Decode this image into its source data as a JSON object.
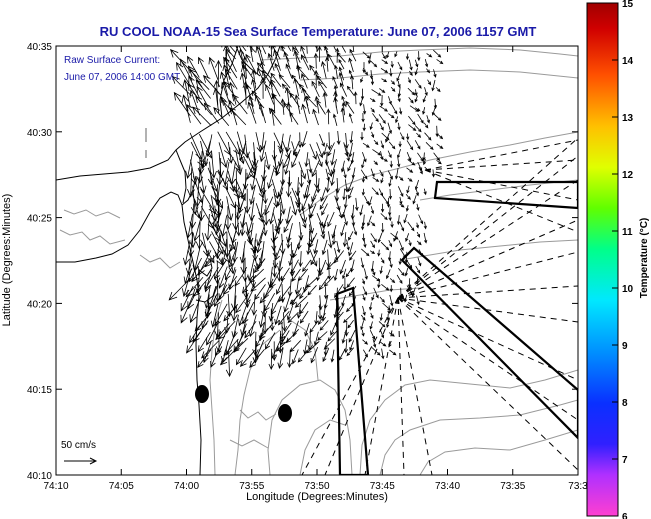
{
  "chart_data": {
    "type": "scatter",
    "title": "RU COOL  NOAA-15  Sea Surface Temperature:  June 07, 2006 1157 GMT",
    "subtitle_line1": "Raw Surface Current:",
    "subtitle_line2": "June 07, 2006 14:00 GMT",
    "xlabel": "Longitude (Degrees:Minutes)",
    "ylabel": "Latitude (Degrees:Minutes)",
    "x_ticks": [
      "74:10",
      "74:05",
      "74:00",
      "73:55",
      "73:50",
      "73:45",
      "73:40",
      "73:35",
      "73:3"
    ],
    "y_ticks": [
      "40:10",
      "40:15",
      "40:20",
      "40:25",
      "40:30",
      "40:35"
    ],
    "scale_label": "50 cm/s",
    "colorbar": {
      "label": "Temperature (°C)",
      "ticks": [
        "6",
        "7",
        "8",
        "9",
        "10",
        "11",
        "12",
        "13",
        "14",
        "15"
      ],
      "range": [
        6,
        15
      ],
      "colors": [
        "#ff3fd0",
        "#7a2cff",
        "#0a10ff",
        "#0090ff",
        "#00e8ff",
        "#00ff7a",
        "#7aff00",
        "#ffff00",
        "#ffb000",
        "#ff4000",
        "#b00000"
      ]
    },
    "lon_range": [
      -74.1667,
      -73.55
    ],
    "lat_range": [
      40.1667,
      40.5833
    ],
    "grid": false
  }
}
